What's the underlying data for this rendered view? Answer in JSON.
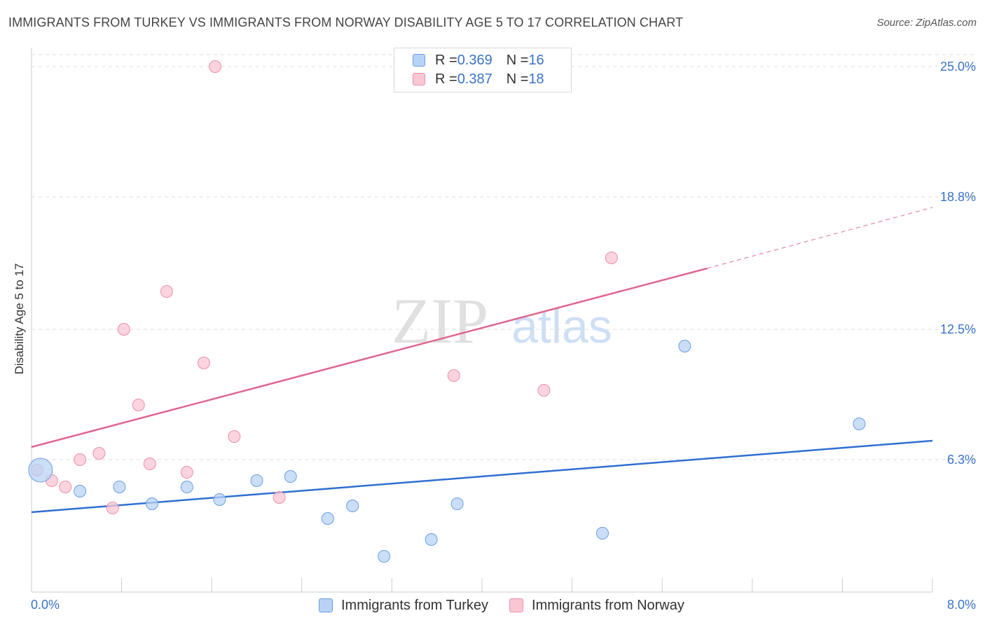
{
  "title": "IMMIGRANTS FROM TURKEY VS IMMIGRANTS FROM NORWAY DISABILITY AGE 5 TO 17 CORRELATION CHART",
  "source": "Source: ZipAtlas.com",
  "watermark": {
    "zip": "ZIP",
    "atlas": "atlas"
  },
  "legend": [
    {
      "r_label": "R = ",
      "r_value": "0.369",
      "n_label": "N = ",
      "n_value": "16"
    },
    {
      "r_label": "R = ",
      "r_value": "0.387",
      "n_label": "N = ",
      "n_value": "18"
    }
  ],
  "colors": {
    "turkey_fill": "#b9d3f5",
    "turkey_stroke": "#6a9fe0",
    "turkey_line": "#2f6fd0",
    "norway_fill": "#f9c6d4",
    "norway_stroke": "#ec8fab",
    "norway_line": "#e0668e",
    "tick_label": "#3a73c8",
    "grid": "#dddddd"
  },
  "chart_data": {
    "type": "scatter",
    "title": "IMMIGRANTS FROM TURKEY VS IMMIGRANTS FROM NORWAY DISABILITY AGE 5 TO 17 CORRELATION CHART",
    "xlabel": "",
    "ylabel": "Disability Age 5 to 17",
    "xlim": [
      0,
      8
    ],
    "ylim": [
      0,
      25
    ],
    "x_tick_labels": [
      "0.0%",
      "8.0%"
    ],
    "y_ticks": [
      6.3,
      12.5,
      18.8,
      25.0
    ],
    "y_tick_labels": [
      "6.3%",
      "12.5%",
      "18.8%",
      "25.0%"
    ],
    "grid": true,
    "legend_position": "top-center",
    "series": [
      {
        "name": "Immigrants from Turkey",
        "color": "#b9d3f5",
        "points": [
          {
            "x": 0.08,
            "y": 5.8,
            "big": true
          },
          {
            "x": 0.43,
            "y": 4.8
          },
          {
            "x": 0.78,
            "y": 5.0
          },
          {
            "x": 1.07,
            "y": 4.2
          },
          {
            "x": 1.38,
            "y": 5.0
          },
          {
            "x": 1.67,
            "y": 4.4
          },
          {
            "x": 2.0,
            "y": 5.3
          },
          {
            "x": 2.3,
            "y": 5.5
          },
          {
            "x": 2.63,
            "y": 3.5
          },
          {
            "x": 2.85,
            "y": 4.1
          },
          {
            "x": 3.13,
            "y": 1.7
          },
          {
            "x": 3.55,
            "y": 2.5
          },
          {
            "x": 3.78,
            "y": 4.2
          },
          {
            "x": 5.07,
            "y": 2.8
          },
          {
            "x": 5.8,
            "y": 11.7
          },
          {
            "x": 7.35,
            "y": 8.0
          }
        ],
        "trend": {
          "x": [
            0,
            8
          ],
          "y": [
            3.8,
            7.2
          ]
        }
      },
      {
        "name": "Immigrants from Norway",
        "color": "#f9c6d4",
        "points": [
          {
            "x": 0.05,
            "y": 5.8
          },
          {
            "x": 0.18,
            "y": 5.3
          },
          {
            "x": 0.3,
            "y": 5.0
          },
          {
            "x": 0.43,
            "y": 6.3
          },
          {
            "x": 0.6,
            "y": 6.6
          },
          {
            "x": 0.72,
            "y": 4.0
          },
          {
            "x": 0.82,
            "y": 12.5
          },
          {
            "x": 0.95,
            "y": 8.9
          },
          {
            "x": 1.05,
            "y": 6.1
          },
          {
            "x": 1.2,
            "y": 14.3
          },
          {
            "x": 1.38,
            "y": 5.7
          },
          {
            "x": 1.53,
            "y": 10.9
          },
          {
            "x": 1.8,
            "y": 7.4
          },
          {
            "x": 1.63,
            "y": 25.0
          },
          {
            "x": 2.2,
            "y": 4.5
          },
          {
            "x": 3.75,
            "y": 10.3
          },
          {
            "x": 4.55,
            "y": 9.6
          },
          {
            "x": 5.15,
            "y": 15.9
          }
        ],
        "trend": {
          "x": [
            0,
            6.0
          ],
          "y": [
            6.9,
            15.4
          ]
        },
        "trend_dashed": {
          "x": [
            6.0,
            8.0
          ],
          "y": [
            15.4,
            18.3
          ]
        }
      }
    ]
  }
}
